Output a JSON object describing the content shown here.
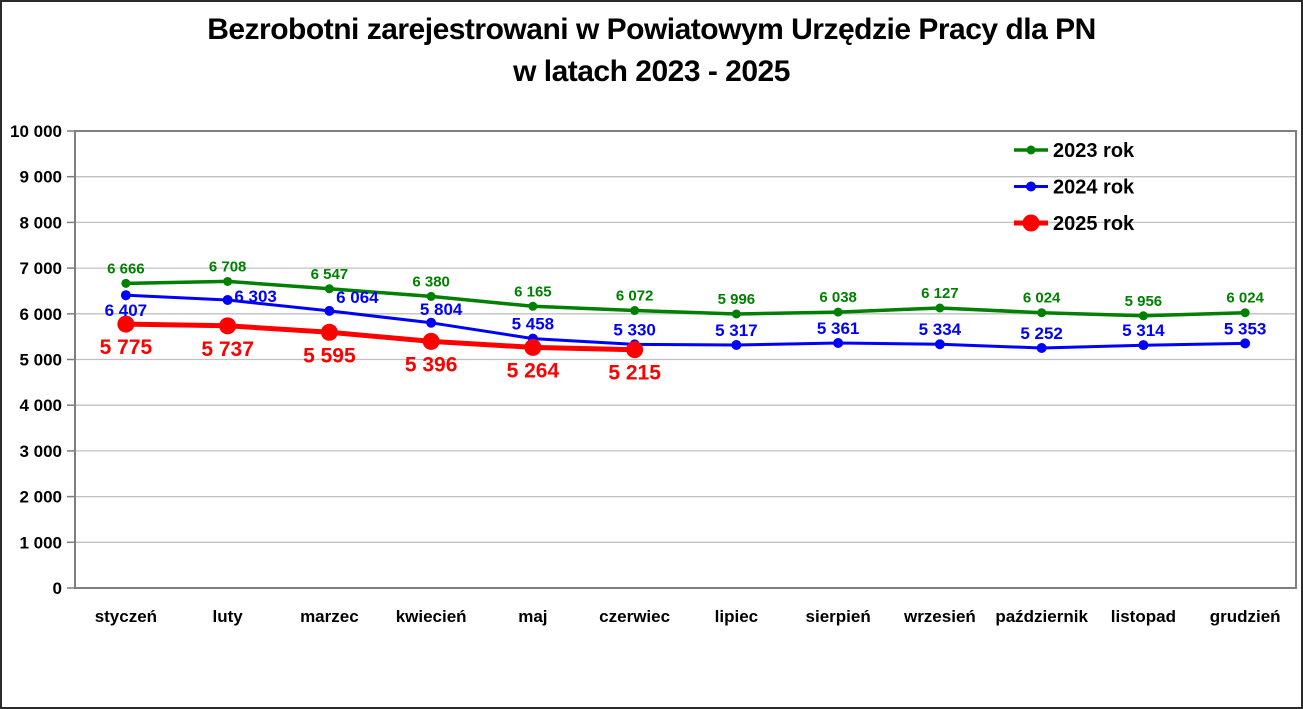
{
  "chart_data": {
    "type": "line",
    "title": "Bezrobotni zarejestrowani w Powiatowym Urzędzie Pracy dla PN w latach 2023 - 2025",
    "title_line1": "Bezrobotni zarejestrowani w Powiatowym Urzędzie Pracy dla PN",
    "title_line2": "w latach 2023 - 2025",
    "categories": [
      "styczeń",
      "luty",
      "marzec",
      "kwiecień",
      "maj",
      "czerwiec",
      "lipiec",
      "sierpień",
      "wrzesień",
      "październik",
      "listopad",
      "grudzień"
    ],
    "series": [
      {
        "name": "2023 rok",
        "color": "#008000",
        "line_width": 3.5,
        "marker_radius": 4.5,
        "label_font_size": 15,
        "label_default_offset": [
          0,
          -10
        ],
        "label_offsets": {},
        "values": [
          6666,
          6708,
          6547,
          6380,
          6165,
          6072,
          5996,
          6038,
          6127,
          6024,
          5956,
          6024
        ]
      },
      {
        "name": "2024 rok",
        "color": "#0000ff",
        "line_width": 3,
        "marker_radius": 5,
        "label_font_size": 17,
        "label_default_offset": [
          0,
          -9
        ],
        "label_offsets": {
          "0": [
            0,
            21
          ],
          "1": [
            28,
            2
          ],
          "2": [
            28,
            -8
          ],
          "3": [
            10,
            -8
          ]
        },
        "values": [
          6407,
          6303,
          6064,
          5804,
          5458,
          5330,
          5317,
          5361,
          5334,
          5252,
          5314,
          5353
        ]
      },
      {
        "name": "2025 rok",
        "color": "#ff0000",
        "line_width": 5,
        "marker_radius": 8.5,
        "label_font_size": 21,
        "label_default_offset": [
          0,
          30
        ],
        "label_offsets": {},
        "values": [
          5775,
          5737,
          5595,
          5396,
          5264,
          5215
        ]
      }
    ],
    "ylim": [
      0,
      10000
    ],
    "ytick_step": 1000,
    "y_tick_labels": [
      "0",
      "1 000",
      "2 000",
      "3 000",
      "4 000",
      "5 000",
      "6 000",
      "7 000",
      "8 000",
      "9 000",
      "10 000"
    ],
    "grid": true,
    "legend_position": "top-right",
    "colors": {
      "axis": "#7f7f7f",
      "grid": "#c0c0c0",
      "text": "#000000",
      "background": "#ffffff"
    }
  }
}
